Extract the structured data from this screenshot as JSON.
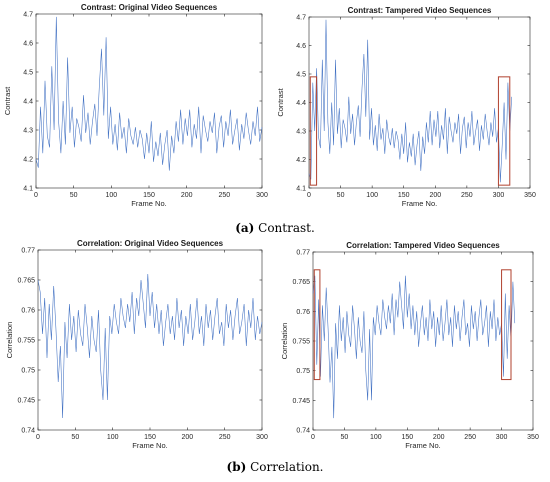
{
  "chart_data": [
    {
      "type": "line",
      "title": "Contrast: Original Video Sequences",
      "xlabel": "Frame No.",
      "ylabel": "Contrast",
      "xlim": [
        0,
        300
      ],
      "ylim": [
        4.1,
        4.7
      ],
      "xticks": [
        0,
        50,
        100,
        150,
        200,
        250,
        300
      ],
      "yticks": [
        4.1,
        4.2,
        4.3,
        4.4,
        4.5,
        4.6,
        4.7
      ],
      "ytick_labels": [
        "4.1",
        "4.2",
        "4.3",
        "4.4",
        "4.5",
        "4.6",
        "4.7"
      ],
      "grid": false,
      "series": [
        {
          "color": "#3f6fc2",
          "x": [
            0,
            3,
            6,
            9,
            12,
            15,
            18,
            21,
            24,
            27,
            30,
            33,
            36,
            39,
            42,
            45,
            48,
            51,
            54,
            57,
            60,
            63,
            66,
            69,
            72,
            75,
            78,
            81,
            84,
            87,
            90,
            93,
            96,
            99,
            102,
            105,
            108,
            111,
            114,
            117,
            120,
            123,
            126,
            129,
            132,
            135,
            138,
            141,
            144,
            147,
            150,
            153,
            156,
            159,
            162,
            165,
            168,
            171,
            174,
            177,
            180,
            183,
            186,
            189,
            192,
            195,
            198,
            201,
            204,
            207,
            210,
            213,
            216,
            219,
            222,
            225,
            228,
            231,
            234,
            237,
            240,
            243,
            246,
            249,
            252,
            255,
            258,
            261,
            264,
            267,
            270,
            273,
            276,
            279,
            282,
            285,
            288,
            291,
            294,
            297,
            300
          ],
          "y": [
            4.2,
            4.17,
            4.38,
            4.22,
            4.47,
            4.28,
            4.24,
            4.52,
            4.3,
            4.69,
            4.33,
            4.22,
            4.4,
            4.25,
            4.55,
            4.29,
            4.38,
            4.24,
            4.34,
            4.31,
            4.26,
            4.42,
            4.29,
            4.36,
            4.25,
            4.33,
            4.39,
            4.28,
            4.45,
            4.58,
            4.35,
            4.62,
            4.27,
            4.38,
            4.25,
            4.32,
            4.23,
            4.36,
            4.27,
            4.31,
            4.22,
            4.34,
            4.28,
            4.25,
            4.31,
            4.24,
            4.3,
            4.27,
            4.2,
            4.29,
            4.22,
            4.33,
            4.19,
            4.26,
            4.21,
            4.29,
            4.18,
            4.25,
            4.3,
            4.16,
            4.28,
            4.22,
            4.33,
            4.26,
            4.37,
            4.25,
            4.34,
            4.28,
            4.37,
            4.24,
            4.32,
            4.27,
            4.38,
            4.22,
            4.35,
            4.3,
            4.26,
            4.33,
            4.29,
            4.36,
            4.22,
            4.31,
            4.35,
            4.24,
            4.33,
            4.28,
            4.37,
            4.25,
            4.3,
            4.34,
            4.23,
            4.32,
            4.27,
            4.36,
            4.3,
            4.25,
            4.33,
            4.28,
            4.38,
            4.26,
            4.31
          ]
        }
      ],
      "highlights": []
    },
    {
      "type": "line",
      "title": "Contrast: Tampered Video Sequences",
      "xlabel": "Frame No.",
      "ylabel": "Contrast",
      "xlim": [
        0,
        350
      ],
      "ylim": [
        4.1,
        4.7
      ],
      "xticks": [
        0,
        50,
        100,
        150,
        200,
        250,
        300,
        350
      ],
      "yticks": [
        4.1,
        4.2,
        4.3,
        4.4,
        4.5,
        4.6,
        4.7
      ],
      "ytick_labels": [
        "4.1",
        "4.2",
        "4.3",
        "4.4",
        "4.5",
        "4.6",
        "4.7"
      ],
      "grid": false,
      "series": [
        {
          "color": "#3f6fc2",
          "x": [
            0,
            3,
            6,
            9,
            12,
            15,
            18,
            21,
            24,
            27,
            30,
            33,
            36,
            39,
            42,
            45,
            48,
            51,
            54,
            57,
            60,
            63,
            66,
            69,
            72,
            75,
            78,
            81,
            84,
            87,
            90,
            93,
            96,
            99,
            102,
            105,
            108,
            111,
            114,
            117,
            120,
            123,
            126,
            129,
            132,
            135,
            138,
            141,
            144,
            147,
            150,
            153,
            156,
            159,
            162,
            165,
            168,
            171,
            174,
            177,
            180,
            183,
            186,
            189,
            192,
            195,
            198,
            201,
            204,
            207,
            210,
            213,
            216,
            219,
            222,
            225,
            228,
            231,
            234,
            237,
            240,
            243,
            246,
            249,
            252,
            255,
            258,
            261,
            264,
            267,
            270,
            273,
            276,
            279,
            282,
            285,
            288,
            291,
            294,
            297,
            300,
            303,
            306,
            309,
            312,
            315,
            318,
            321
          ],
          "y": [
            4.15,
            4.13,
            4.47,
            4.3,
            4.52,
            4.28,
            4.24,
            4.55,
            4.3,
            4.69,
            4.33,
            4.22,
            4.4,
            4.25,
            4.55,
            4.29,
            4.38,
            4.24,
            4.34,
            4.31,
            4.26,
            4.42,
            4.29,
            4.36,
            4.25,
            4.33,
            4.39,
            4.28,
            4.45,
            4.57,
            4.35,
            4.62,
            4.27,
            4.38,
            4.25,
            4.32,
            4.23,
            4.36,
            4.27,
            4.31,
            4.22,
            4.34,
            4.28,
            4.25,
            4.31,
            4.24,
            4.3,
            4.27,
            4.2,
            4.29,
            4.22,
            4.33,
            4.19,
            4.26,
            4.21,
            4.29,
            4.18,
            4.25,
            4.3,
            4.16,
            4.28,
            4.22,
            4.33,
            4.26,
            4.37,
            4.25,
            4.34,
            4.28,
            4.37,
            4.24,
            4.32,
            4.27,
            4.38,
            4.22,
            4.35,
            4.3,
            4.26,
            4.33,
            4.29,
            4.36,
            4.22,
            4.31,
            4.35,
            4.24,
            4.33,
            4.28,
            4.37,
            4.25,
            4.3,
            4.34,
            4.23,
            4.32,
            4.27,
            4.36,
            4.3,
            4.25,
            4.33,
            4.28,
            4.38,
            4.26,
            4.31,
            4.12,
            4.25,
            4.4,
            4.2,
            4.47,
            4.3,
            4.42
          ]
        }
      ],
      "highlights": [
        {
          "x0": 2,
          "x1": 12,
          "y0": 4.11,
          "y1": 4.49
        },
        {
          "x0": 300,
          "x1": 318,
          "y0": 4.11,
          "y1": 4.49
        }
      ]
    },
    {
      "type": "line",
      "title": "Correlation: Original Video Sequences",
      "xlabel": "Frame No.",
      "ylabel": "Correlation",
      "xlim": [
        0,
        300
      ],
      "ylim": [
        0.74,
        0.77
      ],
      "xticks": [
        0,
        50,
        100,
        150,
        200,
        250,
        300
      ],
      "yticks": [
        0.74,
        0.745,
        0.75,
        0.755,
        0.76,
        0.765,
        0.77
      ],
      "ytick_labels": [
        "0.74",
        "0.745",
        "0.75",
        "0.755",
        "0.76",
        "0.765",
        "0.77"
      ],
      "grid": false,
      "series": [
        {
          "color": "#3f6fc2",
          "x": [
            0,
            3,
            6,
            9,
            12,
            15,
            18,
            21,
            24,
            27,
            30,
            33,
            36,
            39,
            42,
            45,
            48,
            51,
            54,
            57,
            60,
            63,
            66,
            69,
            72,
            75,
            78,
            81,
            84,
            87,
            90,
            93,
            96,
            99,
            102,
            105,
            108,
            111,
            114,
            117,
            120,
            123,
            126,
            129,
            132,
            135,
            138,
            141,
            144,
            147,
            150,
            153,
            156,
            159,
            162,
            165,
            168,
            171,
            174,
            177,
            180,
            183,
            186,
            189,
            192,
            195,
            198,
            201,
            204,
            207,
            210,
            213,
            216,
            219,
            222,
            225,
            228,
            231,
            234,
            237,
            240,
            243,
            246,
            249,
            252,
            255,
            258,
            261,
            264,
            267,
            270,
            273,
            276,
            279,
            282,
            285,
            288,
            291,
            294,
            297,
            300
          ],
          "y": [
            0.765,
            0.763,
            0.756,
            0.762,
            0.752,
            0.761,
            0.755,
            0.764,
            0.757,
            0.748,
            0.754,
            0.742,
            0.758,
            0.752,
            0.761,
            0.755,
            0.759,
            0.753,
            0.76,
            0.756,
            0.754,
            0.761,
            0.757,
            0.752,
            0.759,
            0.755,
            0.753,
            0.76,
            0.75,
            0.745,
            0.757,
            0.745,
            0.759,
            0.756,
            0.761,
            0.758,
            0.756,
            0.762,
            0.759,
            0.757,
            0.761,
            0.758,
            0.763,
            0.756,
            0.762,
            0.759,
            0.765,
            0.761,
            0.757,
            0.766,
            0.759,
            0.763,
            0.757,
            0.761,
            0.756,
            0.76,
            0.754,
            0.758,
            0.761,
            0.756,
            0.759,
            0.755,
            0.762,
            0.757,
            0.76,
            0.754,
            0.759,
            0.756,
            0.761,
            0.755,
            0.758,
            0.762,
            0.756,
            0.759,
            0.754,
            0.761,
            0.757,
            0.76,
            0.755,
            0.759,
            0.762,
            0.756,
            0.758,
            0.754,
            0.761,
            0.757,
            0.76,
            0.755,
            0.759,
            0.762,
            0.756,
            0.758,
            0.761,
            0.754,
            0.76,
            0.757,
            0.762,
            0.755,
            0.759,
            0.756,
            0.758
          ]
        }
      ],
      "highlights": []
    },
    {
      "type": "line",
      "title": "Correlation: Tampered Video Sequences",
      "xlabel": "Frame No.",
      "ylabel": "Correlation",
      "xlim": [
        0,
        350
      ],
      "ylim": [
        0.74,
        0.77
      ],
      "xticks": [
        0,
        50,
        100,
        150,
        200,
        250,
        300,
        350
      ],
      "yticks": [
        0.74,
        0.745,
        0.75,
        0.755,
        0.76,
        0.765,
        0.77
      ],
      "ytick_labels": [
        "0.74",
        "0.745",
        "0.75",
        "0.755",
        "0.76",
        "0.765",
        "0.77"
      ],
      "grid": false,
      "series": [
        {
          "color": "#3f6fc2",
          "x": [
            0,
            3,
            6,
            9,
            12,
            15,
            18,
            21,
            24,
            27,
            30,
            33,
            36,
            39,
            42,
            45,
            48,
            51,
            54,
            57,
            60,
            63,
            66,
            69,
            72,
            75,
            78,
            81,
            84,
            87,
            90,
            93,
            96,
            99,
            102,
            105,
            108,
            111,
            114,
            117,
            120,
            123,
            126,
            129,
            132,
            135,
            138,
            141,
            144,
            147,
            150,
            153,
            156,
            159,
            162,
            165,
            168,
            171,
            174,
            177,
            180,
            183,
            186,
            189,
            192,
            195,
            198,
            201,
            204,
            207,
            210,
            213,
            216,
            219,
            222,
            225,
            228,
            231,
            234,
            237,
            240,
            243,
            246,
            249,
            252,
            255,
            258,
            261,
            264,
            267,
            270,
            273,
            276,
            279,
            282,
            285,
            288,
            291,
            294,
            297,
            300,
            303,
            306,
            309,
            312,
            315,
            318,
            321
          ],
          "y": [
            0.763,
            0.766,
            0.751,
            0.762,
            0.749,
            0.761,
            0.755,
            0.764,
            0.757,
            0.748,
            0.754,
            0.742,
            0.758,
            0.752,
            0.761,
            0.755,
            0.759,
            0.753,
            0.76,
            0.756,
            0.754,
            0.761,
            0.757,
            0.752,
            0.759,
            0.755,
            0.753,
            0.76,
            0.75,
            0.745,
            0.757,
            0.745,
            0.759,
            0.756,
            0.761,
            0.758,
            0.756,
            0.762,
            0.759,
            0.757,
            0.761,
            0.758,
            0.763,
            0.756,
            0.762,
            0.759,
            0.765,
            0.761,
            0.757,
            0.766,
            0.759,
            0.763,
            0.757,
            0.761,
            0.756,
            0.76,
            0.754,
            0.758,
            0.761,
            0.756,
            0.759,
            0.755,
            0.762,
            0.757,
            0.76,
            0.754,
            0.759,
            0.756,
            0.761,
            0.755,
            0.758,
            0.762,
            0.756,
            0.759,
            0.754,
            0.761,
            0.757,
            0.76,
            0.755,
            0.759,
            0.762,
            0.756,
            0.758,
            0.754,
            0.761,
            0.757,
            0.76,
            0.755,
            0.759,
            0.762,
            0.756,
            0.758,
            0.761,
            0.754,
            0.76,
            0.757,
            0.762,
            0.755,
            0.759,
            0.756,
            0.758,
            0.749,
            0.763,
            0.752,
            0.761,
            0.755,
            0.765,
            0.758
          ]
        }
      ],
      "highlights": [
        {
          "x0": 2,
          "x1": 11,
          "y0": 0.7485,
          "y1": 0.767
        },
        {
          "x0": 300,
          "x1": 315,
          "y0": 0.7485,
          "y1": 0.767
        }
      ]
    }
  ],
  "captions": {
    "a_label": "(a)",
    "a_text": " Contrast.",
    "b_label": "(b)",
    "b_text": " Correlation."
  }
}
